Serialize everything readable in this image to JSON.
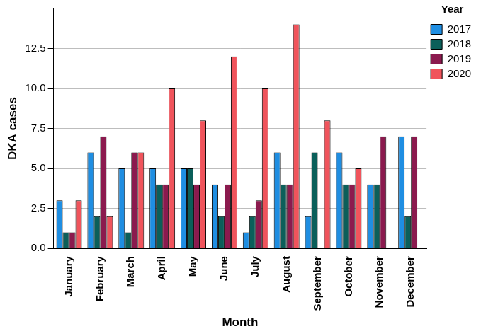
{
  "chart_data": {
    "type": "bar",
    "x_label": "Month",
    "y_label": "DKA cases",
    "legend_title": "Year",
    "categories": [
      "January",
      "February",
      "March",
      "April",
      "May",
      "June",
      "July",
      "August",
      "September",
      "October",
      "November",
      "December"
    ],
    "series": [
      {
        "name": "2017",
        "color": "#1f8ee2",
        "values": [
          3,
          6,
          5,
          5,
          5,
          4,
          1,
          6,
          2,
          6,
          4,
          7
        ]
      },
      {
        "name": "2018",
        "color": "#0b5f5a",
        "values": [
          1,
          2,
          1,
          4,
          5,
          2,
          2,
          4,
          6,
          4,
          4,
          2
        ]
      },
      {
        "name": "2019",
        "color": "#8b1a4e",
        "values": [
          1,
          7,
          6,
          4,
          4,
          4,
          3,
          4,
          null,
          4,
          7,
          7
        ]
      },
      {
        "name": "2020",
        "color": "#f0545c",
        "values": [
          3,
          2,
          6,
          10,
          8,
          12,
          10,
          14,
          8,
          5,
          null,
          null
        ]
      }
    ],
    "ylim": [
      0,
      15
    ],
    "yticks": [
      {
        "value": 0,
        "label": "0.0"
      },
      2.5,
      {
        "value": 5,
        "label": "5.0"
      },
      7.5,
      {
        "value": 10,
        "label": "10.0"
      },
      12.5
    ],
    "grid": true,
    "legend": "top-right"
  }
}
